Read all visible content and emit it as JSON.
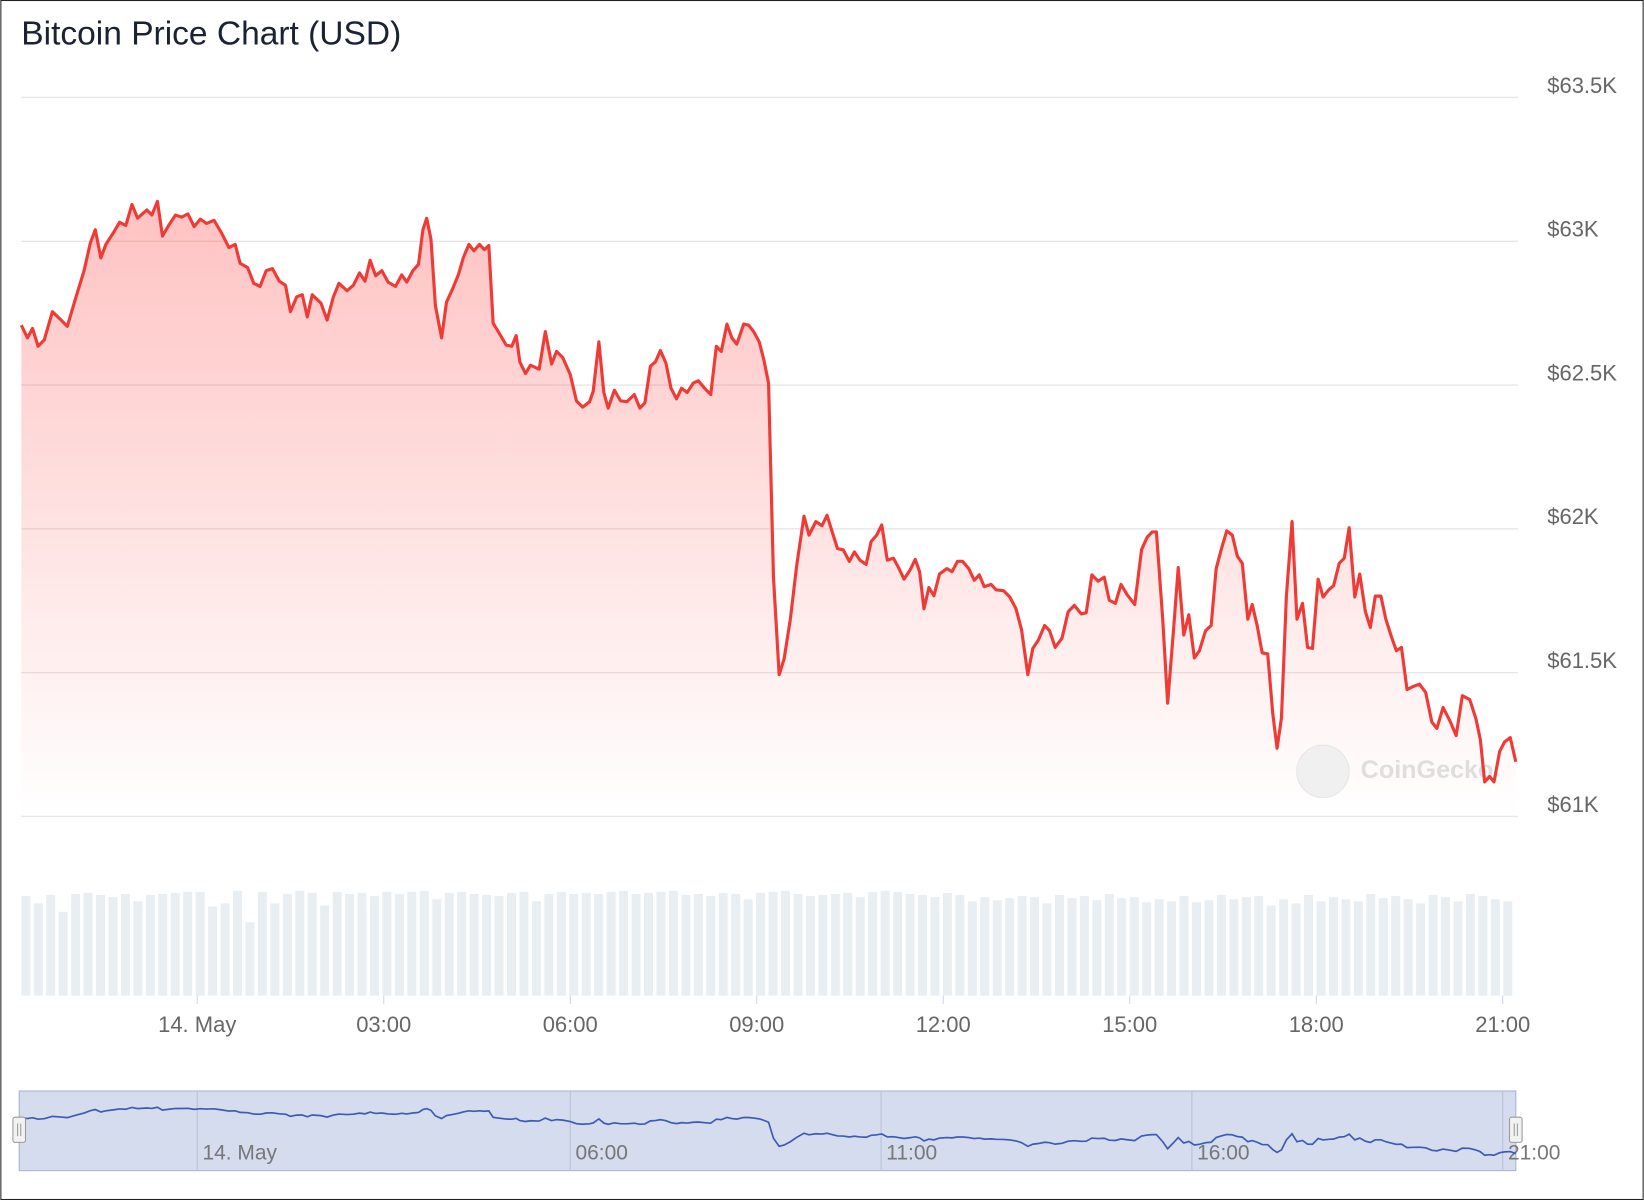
{
  "chart_data": {
    "type": "line",
    "title": "Bitcoin Price Chart (USD)",
    "watermark": "CoinGecko",
    "color": "#ef3b36",
    "x": [
      -2.83,
      -2.73,
      -2.65,
      -2.56,
      -2.46,
      -2.33,
      -2.19,
      -2.09,
      -1.96,
      -1.82,
      -1.72,
      -1.64,
      -1.55,
      -1.47,
      -1.35,
      -1.25,
      -1.15,
      -1.05,
      -0.96,
      -0.81,
      -0.73,
      -0.64,
      -0.56,
      -0.46,
      -0.35,
      -0.25,
      -0.15,
      -0.05,
      0.05,
      0.15,
      0.27,
      0.39,
      0.51,
      0.61,
      0.69,
      0.81,
      0.91,
      1.01,
      1.11,
      1.21,
      1.32,
      1.42,
      1.5,
      1.6,
      1.69,
      1.77,
      1.85,
      1.99,
      2.09,
      2.19,
      2.28,
      2.41,
      2.51,
      2.61,
      2.7,
      2.78,
      2.87,
      2.97,
      3.07,
      3.19,
      3.29,
      3.37,
      3.47,
      3.56,
      3.63,
      3.69,
      3.76,
      3.83,
      3.93,
      4.01,
      4.11,
      4.2,
      4.28,
      4.37,
      4.45,
      4.54,
      4.62,
      4.69,
      4.76,
      4.86,
      4.97,
      5.06,
      5.13,
      5.19,
      5.28,
      5.36,
      5.5,
      5.6,
      5.7,
      5.78,
      5.88,
      6,
      6.1,
      6.2,
      6.31,
      6.37,
      6.46,
      6.54,
      6.61,
      6.71,
      6.81,
      6.91,
      7.03,
      7.12,
      7.2,
      7.29,
      7.37,
      7.45,
      7.54,
      7.62,
      7.71,
      7.79,
      7.88,
      7.98,
      8.06,
      8.16,
      8.26,
      8.35,
      8.43,
      8.52,
      8.6,
      8.68,
      8.79,
      8.87,
      8.95,
      9.04,
      9.11,
      9.19,
      9.27,
      9.36,
      9.44,
      9.54,
      9.64,
      9.76,
      9.84,
      9.95,
      10.05,
      10.13,
      10.22,
      10.3,
      10.39,
      10.49,
      10.57,
      10.66,
      10.76,
      10.84,
      10.93,
      11.01,
      11.1,
      11.2,
      11.28,
      11.37,
      11.47,
      11.55,
      11.62,
      11.69,
      11.77,
      11.85,
      11.94,
      12.06,
      12.14,
      12.23,
      12.31,
      12.41,
      12.5,
      12.58,
      12.66,
      12.77,
      12.85,
      12.97,
      13.07,
      13.17,
      13.26,
      13.36,
      13.44,
      13.53,
      13.63,
      13.71,
      13.8,
      13.91,
      14.01,
      14.11,
      14.22,
      14.3,
      14.39,
      14.49,
      14.59,
      14.67,
      14.77,
      14.86,
      14.96,
      15.08,
      15.19,
      15.28,
      15.36,
      15.43,
      15.53,
      15.61,
      15.7,
      15.78,
      15.87,
      15.95,
      16.04,
      16.12,
      16.22,
      16.31,
      16.39,
      16.48,
      16.56,
      16.65,
      16.73,
      16.81,
      16.9,
      16.97,
      17.05,
      17.13,
      17.22,
      17.3,
      17.37,
      17.44,
      17.52,
      17.61,
      17.69,
      17.78,
      17.86,
      17.94,
      18.03,
      18.11,
      18.2,
      18.28,
      18.37,
      18.45,
      18.53,
      18.62,
      18.7,
      18.79,
      18.87,
      18.95,
      19.04,
      19.12,
      19.21,
      19.29,
      19.37,
      19.46,
      19.56,
      19.66,
      19.76,
      19.86,
      19.94,
      20.04,
      20.16,
      20.25,
      20.35,
      20.47,
      20.57,
      20.64,
      20.71,
      20.79,
      20.86,
      20.95,
      21.03,
      21.12,
      21.21
    ],
    "values": [
      62708,
      62664,
      62697,
      62635,
      62657,
      62755,
      62726,
      62704,
      62799,
      62898,
      62993,
      63040,
      62942,
      62989,
      63029,
      63066,
      63055,
      63128,
      63080,
      63109,
      63091,
      63139,
      63018,
      63055,
      63091,
      63084,
      63095,
      63051,
      63077,
      63062,
      63073,
      63029,
      62978,
      62989,
      62923,
      62909,
      62854,
      62843,
      62898,
      62905,
      62861,
      62847,
      62755,
      62807,
      62814,
      62737,
      62814,
      62785,
      62726,
      62807,
      62854,
      62828,
      62847,
      62890,
      62861,
      62934,
      62880,
      62898,
      62858,
      62843,
      62883,
      62858,
      62898,
      62920,
      63040,
      63080,
      63007,
      62777,
      62664,
      62788,
      62836,
      62883,
      62942,
      62989,
      62967,
      62989,
      62971,
      62985,
      62715,
      62679,
      62639,
      62635,
      62672,
      62580,
      62540,
      62569,
      62555,
      62686,
      62573,
      62617,
      62595,
      62536,
      62445,
      62423,
      62442,
      62478,
      62650,
      62474,
      62420,
      62482,
      62445,
      62442,
      62467,
      62420,
      62438,
      62566,
      62580,
      62620,
      62576,
      62489,
      62452,
      62489,
      62474,
      62507,
      62515,
      62489,
      62467,
      62635,
      62617,
      62712,
      62664,
      62642,
      62712,
      62708,
      62686,
      62650,
      62591,
      62507,
      61832,
      61493,
      61547,
      61686,
      61868,
      62044,
      61978,
      62025,
      62011,
      62047,
      61985,
      61931,
      61927,
      61887,
      61920,
      61891,
      61876,
      61956,
      61978,
      62014,
      61891,
      61898,
      61865,
      61825,
      61858,
      61894,
      61851,
      61722,
      61796,
      61767,
      61843,
      61862,
      61851,
      61887,
      61887,
      61862,
      61821,
      61840,
      61799,
      61807,
      61788,
      61785,
      61763,
      61722,
      61649,
      61493,
      61584,
      61613,
      61664,
      61646,
      61588,
      61620,
      61712,
      61734,
      61704,
      61708,
      61840,
      61818,
      61832,
      61752,
      61741,
      61807,
      61770,
      61737,
      61927,
      61971,
      61989,
      61989,
      61686,
      61394,
      61639,
      61865,
      61631,
      61701,
      61551,
      61576,
      61646,
      61664,
      61862,
      61934,
      61993,
      61978,
      61905,
      61880,
      61686,
      61737,
      61664,
      61569,
      61565,
      61358,
      61237,
      61343,
      61766,
      62025,
      61686,
      61741,
      61588,
      61584,
      61825,
      61763,
      61788,
      61803,
      61880,
      61898,
      62004,
      61763,
      61843,
      61712,
      61657,
      61766,
      61766,
      61686,
      61624,
      61576,
      61588,
      61441,
      61452,
      61460,
      61431,
      61328,
      61306,
      61379,
      61328,
      61281,
      61420,
      61406,
      61339,
      61266,
      61120,
      61139,
      61120,
      61226,
      61259,
      61274,
      61190
    ],
    "xlim": [
      -2.83,
      21.21
    ],
    "xticks": [
      {
        "value": 0,
        "label": "14. May"
      },
      {
        "value": 3,
        "label": "03:00"
      },
      {
        "value": 6,
        "label": "06:00"
      },
      {
        "value": 9,
        "label": "09:00"
      },
      {
        "value": 12,
        "label": "12:00"
      },
      {
        "value": 15,
        "label": "15:00"
      },
      {
        "value": 18,
        "label": "18:00"
      },
      {
        "value": 21,
        "label": "21:00"
      }
    ],
    "ylim": [
      61000,
      63500
    ],
    "yticks": [
      {
        "value": 61000,
        "label": "$61K"
      },
      {
        "value": 61500,
        "label": "$61.5K"
      },
      {
        "value": 62000,
        "label": "$62K"
      },
      {
        "value": 62500,
        "label": "$62.5K"
      },
      {
        "value": 63000,
        "label": "$63K"
      },
      {
        "value": 63500,
        "label": "$63.5K"
      }
    ],
    "grid": true,
    "volume": {
      "color": "#e8eef2",
      "ylim": [
        0,
        100
      ],
      "values": [
        95,
        88,
        96,
        80,
        97,
        98,
        96,
        94,
        97,
        90,
        96,
        97,
        98,
        99,
        99,
        85,
        88,
        100,
        70,
        99,
        88,
        97,
        100,
        98,
        86,
        99,
        97,
        98,
        95,
        99,
        97,
        99,
        100,
        92,
        98,
        99,
        97,
        96,
        95,
        98,
        99,
        90,
        97,
        99,
        97,
        98,
        97,
        99,
        100,
        97,
        98,
        99,
        100,
        96,
        97,
        95,
        98,
        97,
        92,
        98,
        99,
        100,
        97,
        95,
        96,
        97,
        98,
        94,
        99,
        100,
        99,
        97,
        96,
        94,
        98,
        96,
        90,
        94,
        91,
        93,
        95,
        94,
        88,
        96,
        93,
        95,
        91,
        97,
        93,
        94,
        89,
        92,
        90,
        95,
        89,
        91,
        96,
        92,
        94,
        95,
        86,
        92,
        88,
        96,
        90,
        94,
        92,
        90,
        97,
        93,
        95,
        92,
        88,
        96,
        94,
        90,
        97,
        95,
        92,
        90
      ]
    },
    "navigator": {
      "color": "#3b5bb5",
      "xticks": [
        {
          "value": 0,
          "label": "14. May"
        },
        {
          "value": 6,
          "label": "06:00"
        },
        {
          "value": 11,
          "label": "11:00"
        },
        {
          "value": 16,
          "label": "16:00"
        },
        {
          "value": 21,
          "label": "21:00"
        }
      ]
    }
  }
}
